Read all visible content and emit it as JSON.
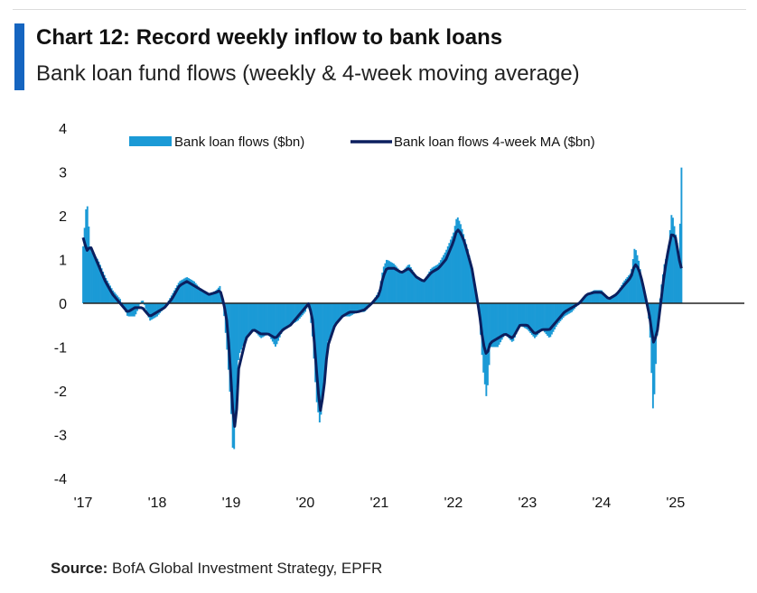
{
  "header": {
    "title": "Chart 12: Record weekly inflow to bank loans",
    "subtitle": "Bank loan fund flows (weekly & 4-week moving average)"
  },
  "source": {
    "label": "Source:",
    "text": " BofA Global Investment Strategy, EPFR"
  },
  "colors": {
    "bars": "#1b9ad6",
    "ma_line": "#0b1f5e",
    "zero_line": "#222222",
    "accent": "#1565c0"
  },
  "chart_data": {
    "type": "bar",
    "title": "Chart 12: Record weekly inflow to bank loans",
    "subtitle": "Bank loan fund flows (weekly & 4-week moving average)",
    "xlabel": "",
    "ylabel": "",
    "ylim": [
      -4,
      4
    ],
    "yticks": [
      "4",
      "3",
      "2",
      "1",
      "0",
      "-1",
      "-2",
      "-3",
      "-4"
    ],
    "xticks": [
      "'17",
      "'18",
      "'19",
      "'20",
      "'21",
      "'22",
      "'23",
      "'24",
      "'25"
    ],
    "x_range_years": [
      2017.0,
      2025.1
    ],
    "legend": {
      "placement": "top",
      "entries": [
        "Bank loan flows ($bn)",
        "Bank loan flows 4-week MA ($bn)"
      ]
    },
    "series": [
      {
        "name": "Bank loan flows ($bn)",
        "kind": "bar",
        "keyframes": [
          [
            2017.0,
            1.3
          ],
          [
            2017.05,
            2.4
          ],
          [
            2017.1,
            1.2
          ],
          [
            2017.2,
            1.0
          ],
          [
            2017.3,
            0.6
          ],
          [
            2017.4,
            0.3
          ],
          [
            2017.5,
            0.1
          ],
          [
            2017.6,
            -0.3
          ],
          [
            2017.7,
            -0.3
          ],
          [
            2017.8,
            0.1
          ],
          [
            2017.9,
            -0.4
          ],
          [
            2018.0,
            -0.3
          ],
          [
            2018.1,
            -0.1
          ],
          [
            2018.2,
            0.2
          ],
          [
            2018.3,
            0.5
          ],
          [
            2018.4,
            0.6
          ],
          [
            2018.5,
            0.5
          ],
          [
            2018.6,
            0.3
          ],
          [
            2018.7,
            0.2
          ],
          [
            2018.8,
            0.3
          ],
          [
            2018.85,
            0.4
          ],
          [
            2018.9,
            -0.2
          ],
          [
            2018.95,
            -1.2
          ],
          [
            2019.0,
            -2.5
          ],
          [
            2019.03,
            -3.7
          ],
          [
            2019.06,
            -2.5
          ],
          [
            2019.1,
            -1.2
          ],
          [
            2019.2,
            -0.8
          ],
          [
            2019.3,
            -0.6
          ],
          [
            2019.4,
            -0.8
          ],
          [
            2019.5,
            -0.7
          ],
          [
            2019.6,
            -1.0
          ],
          [
            2019.7,
            -0.6
          ],
          [
            2019.8,
            -0.5
          ],
          [
            2019.9,
            -0.4
          ],
          [
            2020.0,
            -0.2
          ],
          [
            2020.05,
            0.0
          ],
          [
            2020.1,
            -0.8
          ],
          [
            2020.15,
            -2.2
          ],
          [
            2020.2,
            -2.8
          ],
          [
            2020.25,
            -1.8
          ],
          [
            2020.3,
            -0.9
          ],
          [
            2020.4,
            -0.5
          ],
          [
            2020.5,
            -0.3
          ],
          [
            2020.6,
            -0.3
          ],
          [
            2020.7,
            -0.2
          ],
          [
            2020.8,
            -0.2
          ],
          [
            2020.9,
            0.0
          ],
          [
            2021.0,
            0.3
          ],
          [
            2021.05,
            0.8
          ],
          [
            2021.1,
            1.0
          ],
          [
            2021.2,
            0.9
          ],
          [
            2021.3,
            0.7
          ],
          [
            2021.4,
            0.9
          ],
          [
            2021.5,
            0.6
          ],
          [
            2021.6,
            0.5
          ],
          [
            2021.7,
            0.8
          ],
          [
            2021.8,
            0.9
          ],
          [
            2021.9,
            1.2
          ],
          [
            2022.0,
            1.6
          ],
          [
            2022.05,
            2.0
          ],
          [
            2022.1,
            1.8
          ],
          [
            2022.15,
            1.5
          ],
          [
            2022.2,
            1.2
          ],
          [
            2022.25,
            0.8
          ],
          [
            2022.3,
            0.3
          ],
          [
            2022.35,
            -0.3
          ],
          [
            2022.4,
            -1.5
          ],
          [
            2022.45,
            -2.2
          ],
          [
            2022.5,
            -1.0
          ],
          [
            2022.6,
            -1.0
          ],
          [
            2022.7,
            -0.7
          ],
          [
            2022.8,
            -0.9
          ],
          [
            2022.9,
            -0.5
          ],
          [
            2023.0,
            -0.6
          ],
          [
            2023.1,
            -0.8
          ],
          [
            2023.2,
            -0.6
          ],
          [
            2023.3,
            -0.8
          ],
          [
            2023.4,
            -0.5
          ],
          [
            2023.5,
            -0.3
          ],
          [
            2023.6,
            -0.2
          ],
          [
            2023.7,
            0.0
          ],
          [
            2023.8,
            0.2
          ],
          [
            2023.9,
            0.3
          ],
          [
            2024.0,
            0.3
          ],
          [
            2024.1,
            0.1
          ],
          [
            2024.2,
            0.2
          ],
          [
            2024.3,
            0.5
          ],
          [
            2024.4,
            0.7
          ],
          [
            2024.45,
            1.3
          ],
          [
            2024.5,
            1.0
          ],
          [
            2024.55,
            0.5
          ],
          [
            2024.6,
            0.1
          ],
          [
            2024.65,
            -0.5
          ],
          [
            2024.7,
            -2.6
          ],
          [
            2024.75,
            -0.8
          ],
          [
            2024.8,
            0.3
          ],
          [
            2024.85,
            0.9
          ],
          [
            2024.9,
            1.2
          ],
          [
            2024.95,
            2.1
          ],
          [
            2025.0,
            1.6
          ],
          [
            2025.05,
            1.1
          ],
          [
            2025.08,
            3.1
          ]
        ]
      },
      {
        "name": "Bank loan flows 4-week MA ($bn)",
        "kind": "line",
        "keyframes": [
          [
            2017.0,
            1.5
          ],
          [
            2017.05,
            1.2
          ],
          [
            2017.1,
            1.3
          ],
          [
            2017.2,
            0.9
          ],
          [
            2017.3,
            0.5
          ],
          [
            2017.4,
            0.2
          ],
          [
            2017.5,
            0.0
          ],
          [
            2017.6,
            -0.2
          ],
          [
            2017.7,
            -0.1
          ],
          [
            2017.8,
            -0.1
          ],
          [
            2017.9,
            -0.3
          ],
          [
            2018.0,
            -0.2
          ],
          [
            2018.1,
            -0.1
          ],
          [
            2018.2,
            0.1
          ],
          [
            2018.3,
            0.4
          ],
          [
            2018.4,
            0.5
          ],
          [
            2018.5,
            0.4
          ],
          [
            2018.6,
            0.3
          ],
          [
            2018.7,
            0.2
          ],
          [
            2018.8,
            0.25
          ],
          [
            2018.85,
            0.3
          ],
          [
            2018.9,
            0.0
          ],
          [
            2018.95,
            -0.5
          ],
          [
            2019.0,
            -1.8
          ],
          [
            2019.03,
            -2.7
          ],
          [
            2019.06,
            -2.9
          ],
          [
            2019.1,
            -1.5
          ],
          [
            2019.2,
            -0.8
          ],
          [
            2019.3,
            -0.6
          ],
          [
            2019.4,
            -0.7
          ],
          [
            2019.5,
            -0.7
          ],
          [
            2019.6,
            -0.8
          ],
          [
            2019.7,
            -0.6
          ],
          [
            2019.8,
            -0.5
          ],
          [
            2019.9,
            -0.3
          ],
          [
            2020.0,
            -0.1
          ],
          [
            2020.05,
            0.0
          ],
          [
            2020.1,
            -0.4
          ],
          [
            2020.15,
            -1.5
          ],
          [
            2020.2,
            -2.5
          ],
          [
            2020.25,
            -2.0
          ],
          [
            2020.3,
            -1.0
          ],
          [
            2020.4,
            -0.5
          ],
          [
            2020.5,
            -0.3
          ],
          [
            2020.6,
            -0.2
          ],
          [
            2020.7,
            -0.2
          ],
          [
            2020.8,
            -0.15
          ],
          [
            2020.9,
            0.0
          ],
          [
            2021.0,
            0.2
          ],
          [
            2021.05,
            0.6
          ],
          [
            2021.1,
            0.8
          ],
          [
            2021.2,
            0.8
          ],
          [
            2021.3,
            0.7
          ],
          [
            2021.4,
            0.8
          ],
          [
            2021.5,
            0.6
          ],
          [
            2021.6,
            0.5
          ],
          [
            2021.7,
            0.7
          ],
          [
            2021.8,
            0.8
          ],
          [
            2021.9,
            1.0
          ],
          [
            2022.0,
            1.4
          ],
          [
            2022.05,
            1.7
          ],
          [
            2022.1,
            1.6
          ],
          [
            2022.15,
            1.4
          ],
          [
            2022.2,
            1.1
          ],
          [
            2022.25,
            0.8
          ],
          [
            2022.3,
            0.3
          ],
          [
            2022.35,
            -0.2
          ],
          [
            2022.4,
            -0.9
          ],
          [
            2022.45,
            -1.2
          ],
          [
            2022.5,
            -0.9
          ],
          [
            2022.6,
            -0.8
          ],
          [
            2022.7,
            -0.7
          ],
          [
            2022.8,
            -0.8
          ],
          [
            2022.9,
            -0.5
          ],
          [
            2023.0,
            -0.5
          ],
          [
            2023.1,
            -0.7
          ],
          [
            2023.2,
            -0.6
          ],
          [
            2023.3,
            -0.6
          ],
          [
            2023.4,
            -0.4
          ],
          [
            2023.5,
            -0.2
          ],
          [
            2023.6,
            -0.1
          ],
          [
            2023.7,
            0.0
          ],
          [
            2023.8,
            0.2
          ],
          [
            2023.9,
            0.25
          ],
          [
            2024.0,
            0.25
          ],
          [
            2024.1,
            0.1
          ],
          [
            2024.2,
            0.2
          ],
          [
            2024.3,
            0.4
          ],
          [
            2024.4,
            0.6
          ],
          [
            2024.45,
            0.9
          ],
          [
            2024.5,
            0.8
          ],
          [
            2024.55,
            0.5
          ],
          [
            2024.6,
            0.1
          ],
          [
            2024.65,
            -0.3
          ],
          [
            2024.7,
            -0.9
          ],
          [
            2024.75,
            -0.7
          ],
          [
            2024.8,
            0.0
          ],
          [
            2024.85,
            0.7
          ],
          [
            2024.9,
            1.2
          ],
          [
            2024.95,
            1.6
          ],
          [
            2025.0,
            1.5
          ],
          [
            2025.05,
            1.0
          ],
          [
            2025.08,
            0.8
          ]
        ]
      }
    ]
  }
}
